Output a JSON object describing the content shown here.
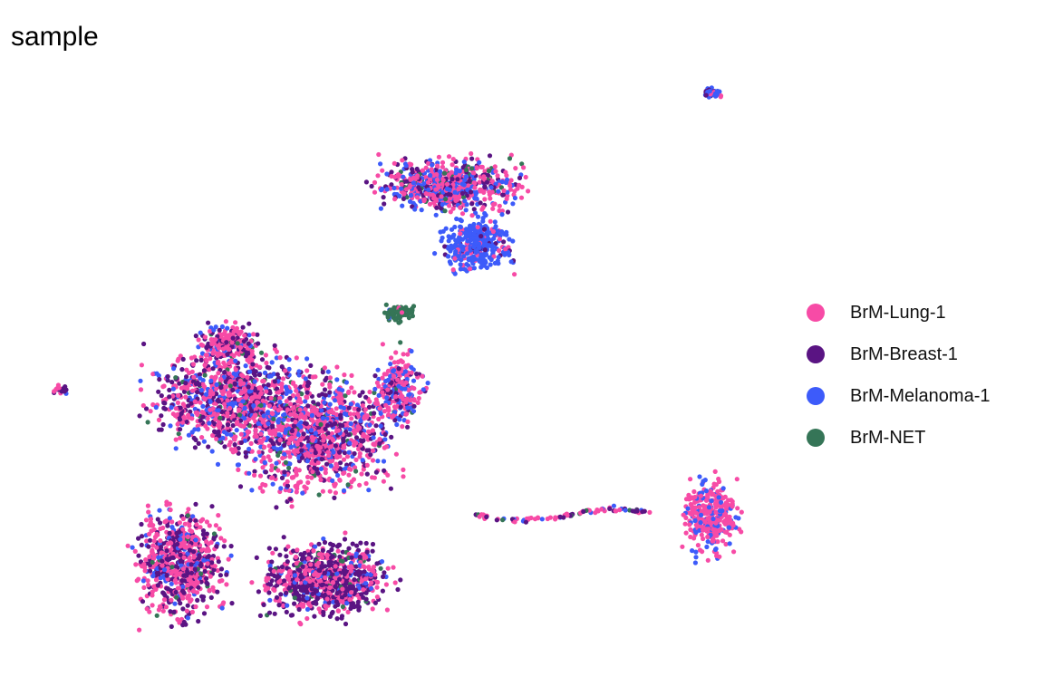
{
  "chart_data": {
    "type": "scatter",
    "title": "sample",
    "xlabel": "",
    "ylabel": "",
    "grid": false,
    "axes_visible": false,
    "legend_position": "right",
    "series": [
      {
        "name": "BrM-Lung-1",
        "color": "#F74BA6"
      },
      {
        "name": "BrM-Breast-1",
        "color": "#5A1483"
      },
      {
        "name": "BrM-Melanoma-1",
        "color": "#3D5BFA"
      },
      {
        "name": "BrM-NET",
        "color": "#357557"
      }
    ]
  }
}
